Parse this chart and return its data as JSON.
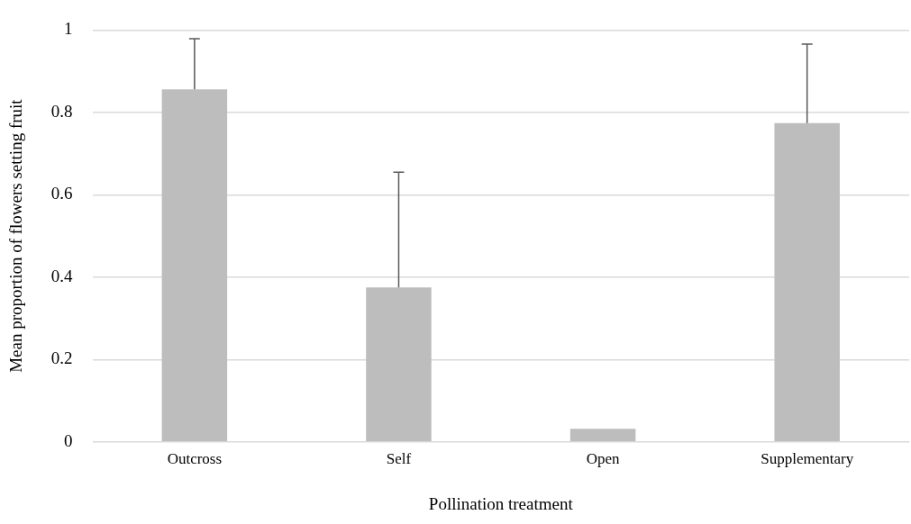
{
  "chart_data": {
    "type": "bar",
    "xlabel": "Pollination treatment",
    "ylabel": "Mean proportion of flowers setting fruit",
    "categories": [
      "Outcross",
      "Self",
      "Open",
      "Supplementary"
    ],
    "values": [
      0.856,
      0.375,
      0.032,
      0.774
    ],
    "errors": [
      [
        0.856,
        0.979
      ],
      [
        0.375,
        0.655
      ],
      null,
      [
        0.774,
        0.966
      ]
    ],
    "color": "#bdbdbd",
    "ylim": [
      0,
      1
    ],
    "yticks": [
      0,
      0.2,
      0.4,
      0.6,
      0.8,
      1
    ],
    "grid": "y",
    "legend": false
  }
}
